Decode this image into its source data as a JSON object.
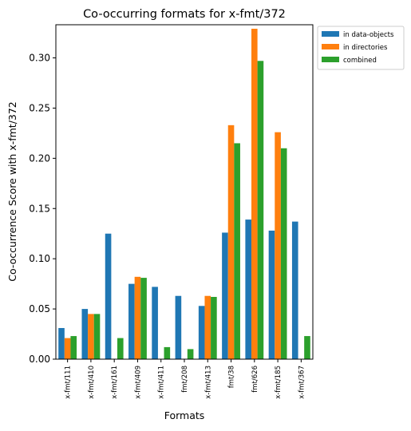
{
  "chart_data": {
    "type": "bar",
    "title": "Co-occurring formats for x-fmt/372",
    "xlabel": "Formats",
    "ylabel": "Co-occurrence Score with x-fmt/372",
    "ylim": [
      0,
      0.333
    ],
    "yticks": [
      "0.00",
      "0.05",
      "0.10",
      "0.15",
      "0.20",
      "0.25",
      "0.30"
    ],
    "ytick_values": [
      0,
      0.05,
      0.1,
      0.15,
      0.2,
      0.25,
      0.3
    ],
    "grid": false,
    "legend_position": "outside-top-right",
    "categories": [
      "x-fmt/111",
      "x-fmt/410",
      "x-fmt/161",
      "x-fmt/409",
      "x-fmt/411",
      "fmt/208",
      "x-fmt/413",
      "fmt/38",
      "fmt/626",
      "x-fmt/185",
      "x-fmt/367"
    ],
    "series": [
      {
        "name": "in data-objects",
        "color": "#1f77b4",
        "values": [
          0.031,
          0.05,
          0.125,
          0.075,
          0.072,
          0.063,
          0.053,
          0.126,
          0.139,
          0.128,
          0.137
        ]
      },
      {
        "name": "in directories",
        "color": "#ff7f0e",
        "values": [
          0.021,
          0.045,
          0.0,
          0.082,
          0.0,
          0.0,
          0.063,
          0.233,
          0.329,
          0.226,
          0.0
        ]
      },
      {
        "name": "combined",
        "color": "#2ca02c",
        "values": [
          0.023,
          0.045,
          0.021,
          0.081,
          0.012,
          0.01,
          0.062,
          0.215,
          0.297,
          0.21,
          0.023
        ]
      }
    ]
  }
}
